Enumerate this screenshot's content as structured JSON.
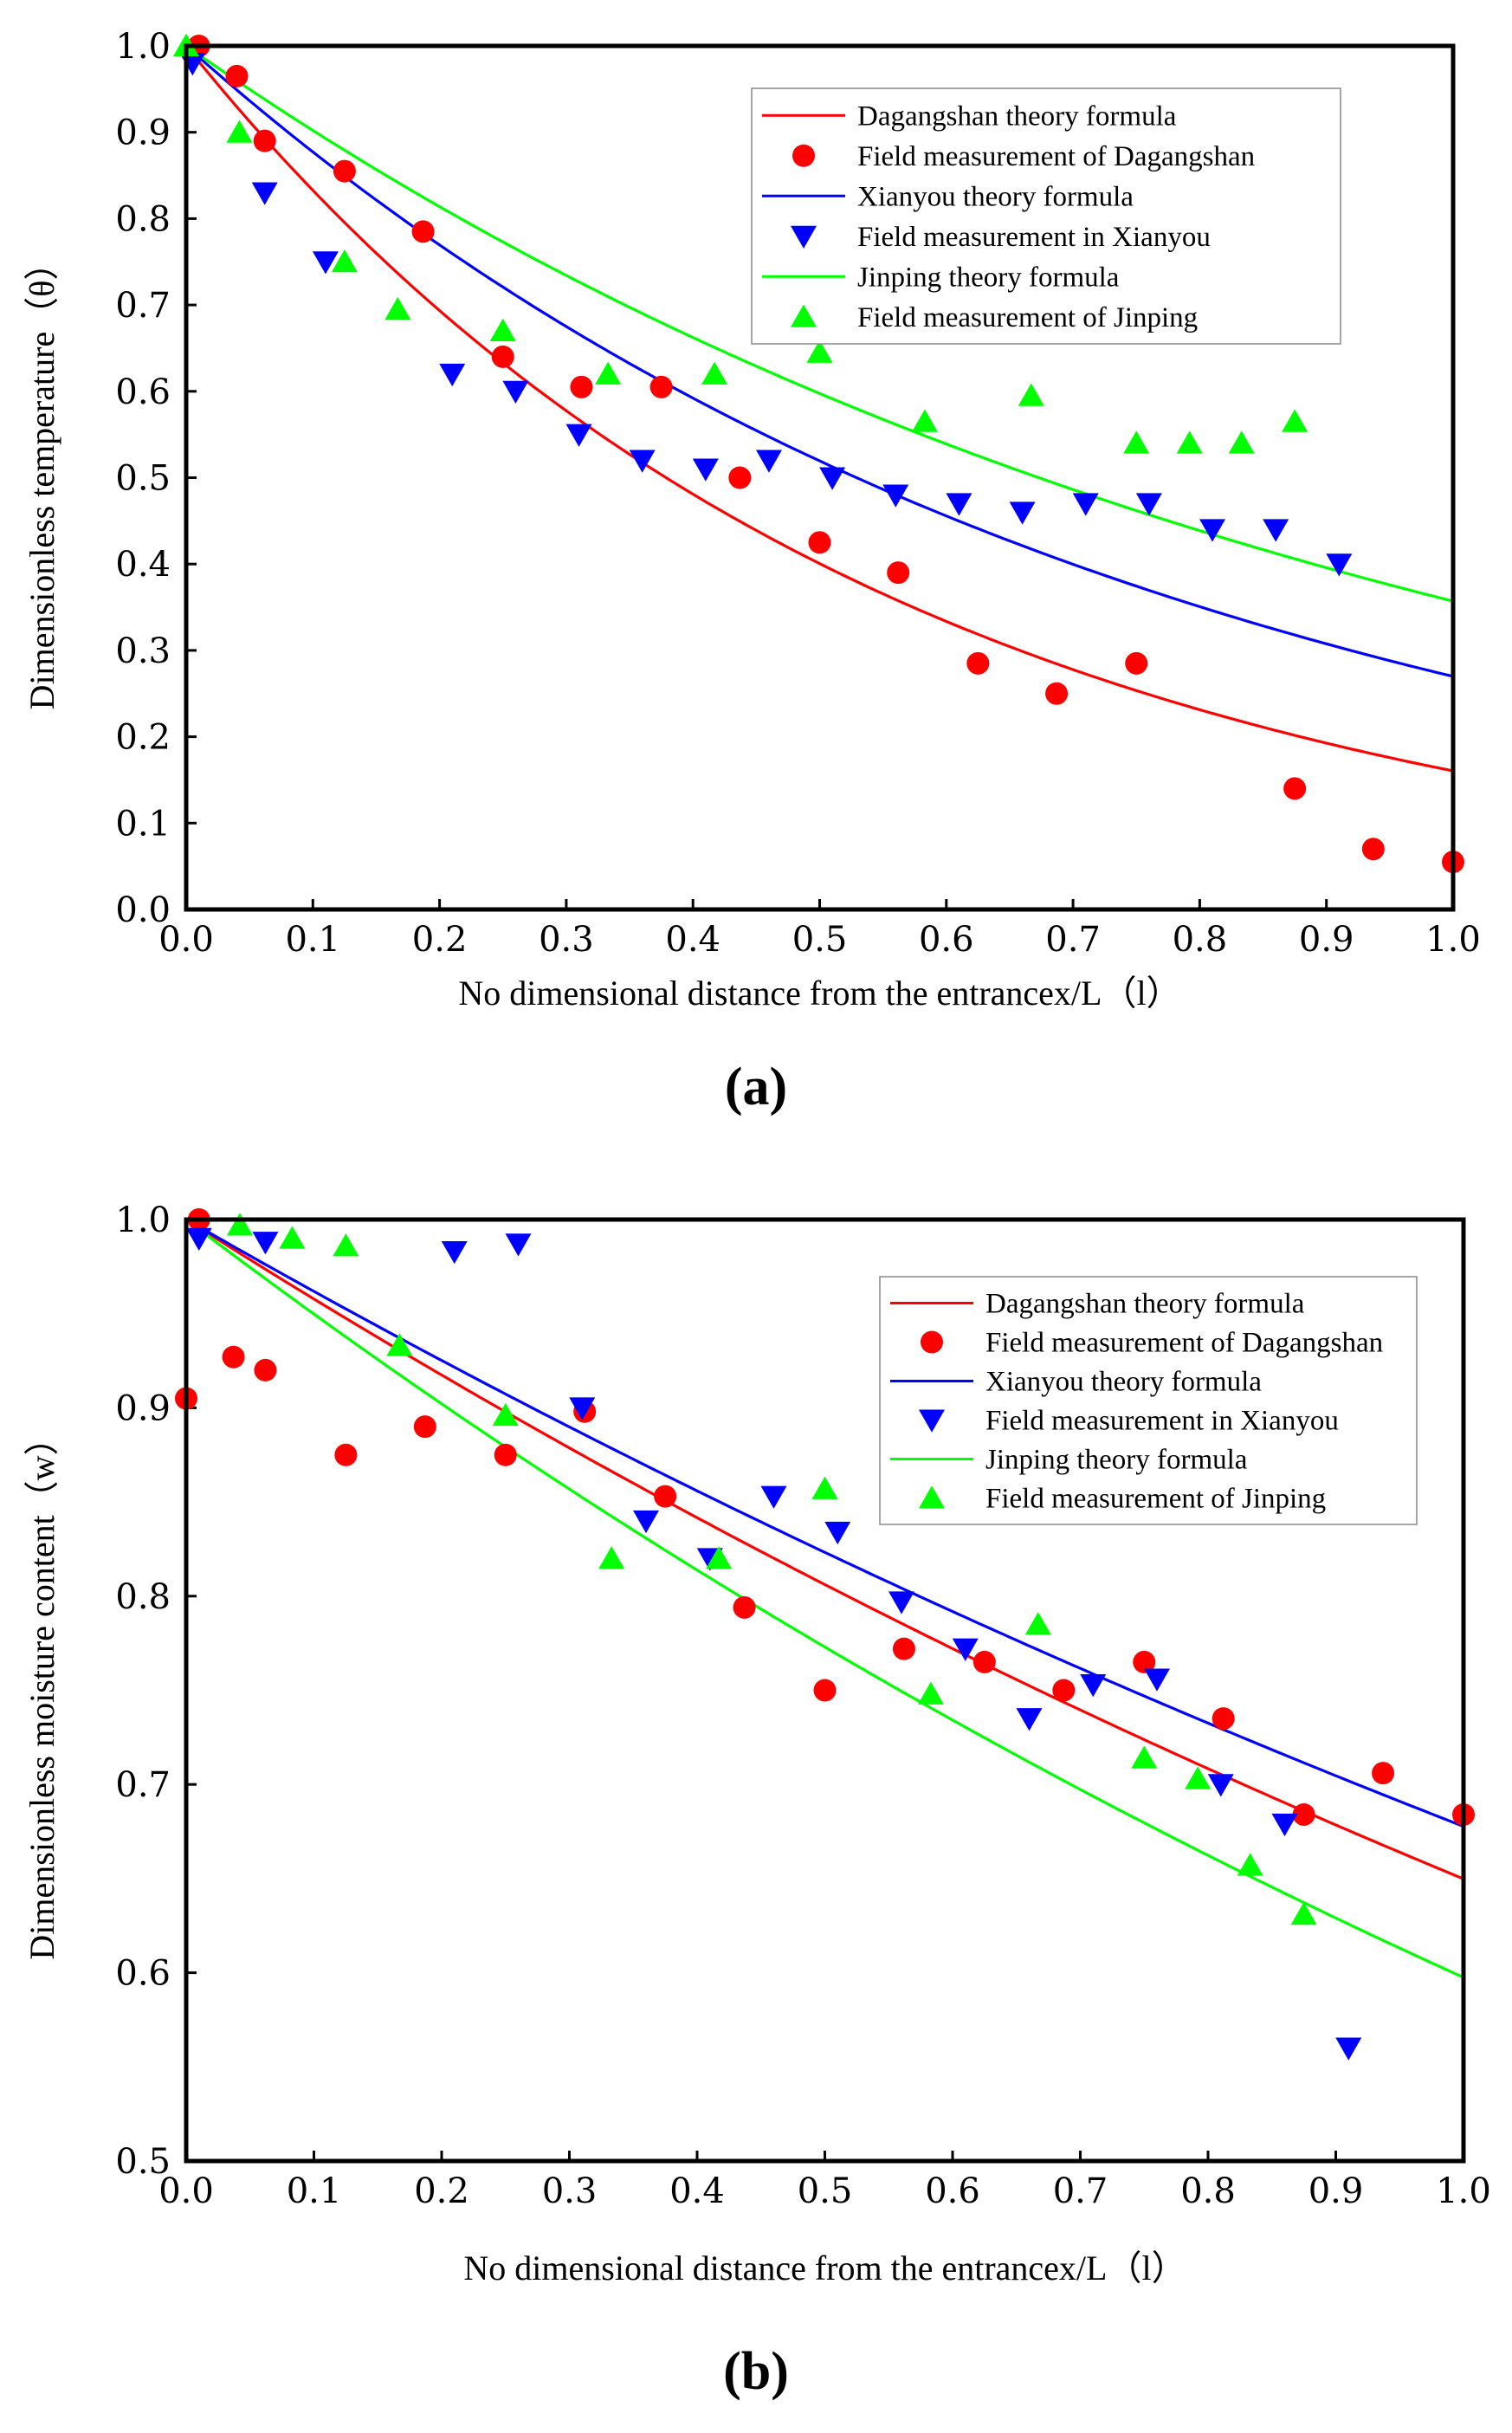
{
  "chart_data": [
    {
      "type": "scatter",
      "panel_label": "(a)",
      "xlabel": "No dimensional distance from the entrancex/L（l）",
      "ylabel": "Dimensionless temperature（θ）",
      "xlim": [
        0,
        1.0
      ],
      "ylim": [
        0,
        1.0
      ],
      "xticks": [
        "0.0",
        "0.1",
        "0.2",
        "0.3",
        "0.4",
        "0.5",
        "0.6",
        "0.7",
        "0.8",
        "0.9",
        "1.0"
      ],
      "yticks": [
        "0.0",
        "0.1",
        "0.2",
        "0.3",
        "0.4",
        "0.5",
        "0.6",
        "0.7",
        "0.8",
        "0.9",
        "1.0"
      ],
      "xtick_values": [
        0,
        0.1,
        0.2,
        0.3,
        0.4,
        0.5,
        0.6,
        0.7,
        0.8,
        0.9,
        1.0
      ],
      "ytick_values": [
        0,
        0.1,
        0.2,
        0.3,
        0.4,
        0.5,
        0.6,
        0.7,
        0.8,
        0.9,
        1.0
      ],
      "legend_position": "top-right",
      "series": [
        {
          "name": "Dagangshan theory formula",
          "kind": "line",
          "color": "#ff0000",
          "k": 1.83
        },
        {
          "name": "Field measurement of Dagangshan",
          "kind": "circle",
          "color": "#ff0000",
          "x": [
            0.01,
            0.04,
            0.062,
            0.125,
            0.187,
            0.25,
            0.312,
            0.375,
            0.437,
            0.5,
            0.562,
            0.625,
            0.687,
            0.75,
            0.875,
            0.937,
            1.0
          ],
          "y": [
            1.0,
            0.965,
            0.89,
            0.855,
            0.785,
            0.64,
            0.605,
            0.605,
            0.5,
            0.425,
            0.39,
            0.285,
            0.25,
            0.285,
            0.14,
            0.07,
            0.055
          ]
        },
        {
          "name": "Xianyou theory formula",
          "kind": "line",
          "color": "#0000ff",
          "k": 1.31
        },
        {
          "name": "Field measurement in Xianyou",
          "kind": "tri-down",
          "color": "#0000ff",
          "x": [
            0.005,
            0.062,
            0.11,
            0.21,
            0.26,
            0.31,
            0.36,
            0.41,
            0.46,
            0.51,
            0.56,
            0.61,
            0.66,
            0.71,
            0.76,
            0.81,
            0.86,
            0.91
          ],
          "y": [
            0.98,
            0.83,
            0.75,
            0.62,
            0.6,
            0.55,
            0.52,
            0.51,
            0.52,
            0.5,
            0.48,
            0.47,
            0.46,
            0.47,
            0.47,
            0.44,
            0.44,
            0.4
          ]
        },
        {
          "name": "Jinping theory formula",
          "kind": "line",
          "color": "#00ff00",
          "k": 1.03
        },
        {
          "name": "Field measurement of Jinping",
          "kind": "tri-up",
          "color": "#00ff00",
          "x": [
            0.0,
            0.042,
            0.125,
            0.167,
            0.25,
            0.333,
            0.417,
            0.5,
            0.583,
            0.667,
            0.75,
            0.792,
            0.833,
            0.875
          ],
          "y": [
            1.0,
            0.9,
            0.75,
            0.695,
            0.67,
            0.62,
            0.62,
            0.645,
            0.565,
            0.595,
            0.54,
            0.54,
            0.54,
            0.565
          ]
        }
      ]
    },
    {
      "type": "scatter",
      "panel_label": "(b)",
      "xlabel": "No dimensional distance from the entrancex/L（l）",
      "ylabel": "Dimensionless moisture content（w）",
      "xlim": [
        0,
        1.0
      ],
      "ylim": [
        0.5,
        1.0
      ],
      "xticks": [
        "0.0",
        "0.1",
        "0.2",
        "0.3",
        "0.4",
        "0.5",
        "0.6",
        "0.7",
        "0.8",
        "0.9",
        "1.0"
      ],
      "yticks": [
        "0.5",
        "0.6",
        "0.7",
        "0.8",
        "0.9",
        "1.0"
      ],
      "xtick_values": [
        0,
        0.1,
        0.2,
        0.3,
        0.4,
        0.5,
        0.6,
        0.7,
        0.8,
        0.9,
        1.0
      ],
      "ytick_values": [
        0.5,
        0.6,
        0.7,
        0.8,
        0.9,
        1.0
      ],
      "legend_position": "right",
      "series": [
        {
          "name": "Dagangshan theory formula",
          "kind": "line",
          "color": "#ff0000",
          "k": 0.431
        },
        {
          "name": "Field measurement of Dagangshan",
          "kind": "circle",
          "color": "#ff0000",
          "x": [
            0.0,
            0.01,
            0.037,
            0.062,
            0.125,
            0.187,
            0.25,
            0.312,
            0.375,
            0.437,
            0.5,
            0.562,
            0.625,
            0.687,
            0.75,
            0.812,
            0.875,
            0.937,
            1.0
          ],
          "y": [
            0.905,
            1.0,
            0.927,
            0.92,
            0.875,
            0.89,
            0.875,
            0.898,
            0.853,
            0.794,
            0.75,
            0.772,
            0.765,
            0.75,
            0.765,
            0.735,
            0.684,
            0.706,
            0.684
          ]
        },
        {
          "name": "Xianyou theory formula",
          "kind": "line",
          "color": "#0000ff",
          "k": 0.389
        },
        {
          "name": "Field measurement in Xianyou",
          "kind": "tri-down",
          "color": "#0000ff",
          "x": [
            0.01,
            0.062,
            0.21,
            0.26,
            0.31,
            0.36,
            0.41,
            0.46,
            0.51,
            0.56,
            0.61,
            0.66,
            0.71,
            0.76,
            0.81,
            0.86,
            0.91
          ],
          "y": [
            0.99,
            0.988,
            0.983,
            0.987,
            0.9,
            0.84,
            0.82,
            0.853,
            0.834,
            0.797,
            0.772,
            0.735,
            0.753,
            0.756,
            0.7,
            0.679,
            0.56
          ]
        },
        {
          "name": "Jinping theory formula",
          "kind": "line",
          "color": "#00ff00",
          "k": 0.515
        },
        {
          "name": "Field measurement of Jinping",
          "kind": "tri-up",
          "color": "#00ff00",
          "x": [
            0.042,
            0.083,
            0.125,
            0.167,
            0.25,
            0.333,
            0.417,
            0.5,
            0.583,
            0.667,
            0.75,
            0.792,
            0.833,
            0.875
          ],
          "y": [
            0.997,
            0.99,
            0.986,
            0.933,
            0.896,
            0.82,
            0.82,
            0.857,
            0.748,
            0.785,
            0.714,
            0.703,
            0.657,
            0.631
          ]
        }
      ]
    }
  ]
}
